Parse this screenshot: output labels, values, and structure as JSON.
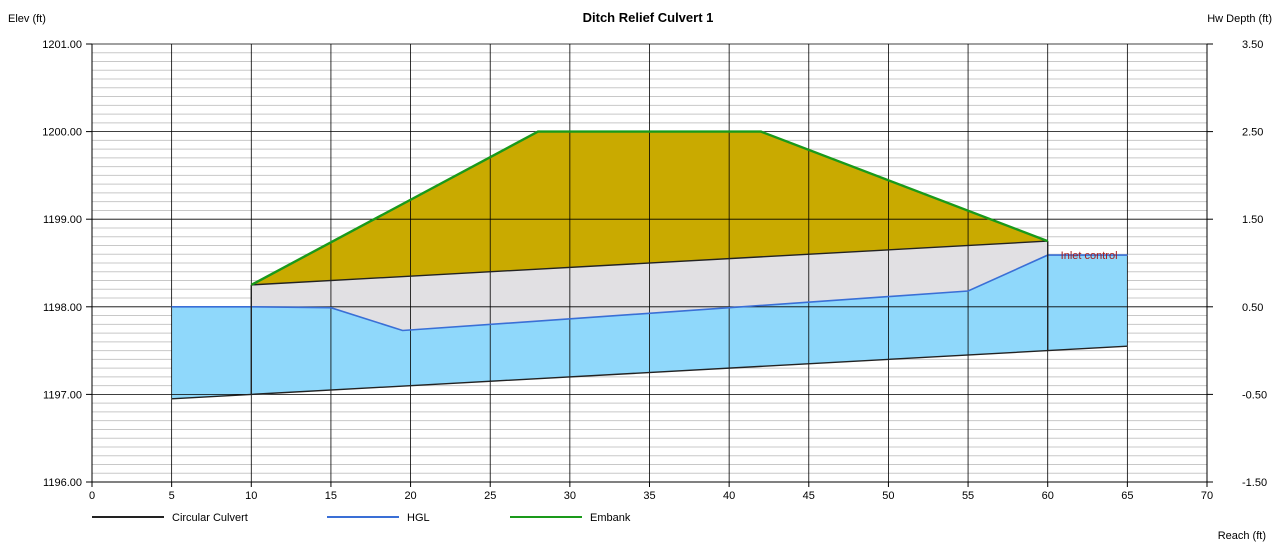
{
  "chart_data": {
    "type": "area",
    "title": "Ditch Relief Culvert 1",
    "y_left_label": "Elev (ft)",
    "y_right_label": "Hw Depth (ft)",
    "x_label": "Reach (ft)",
    "xlim": [
      0,
      70
    ],
    "ylim": [
      1196.0,
      1201.0
    ],
    "y2lim": [
      -1.5,
      3.5
    ],
    "x_ticks": [
      "0",
      "5",
      "10",
      "15",
      "20",
      "25",
      "30",
      "35",
      "40",
      "45",
      "50",
      "55",
      "60",
      "65",
      "70"
    ],
    "y_ticks": [
      "1196.00",
      "1197.00",
      "1198.00",
      "1199.00",
      "1200.00",
      "1201.00"
    ],
    "y2_ticks": [
      "-1.50",
      "-0.50",
      "0.50",
      "1.50",
      "2.50",
      "3.50"
    ],
    "grid": true,
    "legend_placement": "bottom-left",
    "series": [
      {
        "name": "Circular Culvert",
        "color": "#222222",
        "invert": [
          [
            5,
            1196.95
          ],
          [
            10,
            1197.0
          ],
          [
            60,
            1197.5
          ],
          [
            65,
            1197.55
          ]
        ],
        "crown": [
          [
            10,
            1198.25
          ],
          [
            60,
            1198.75
          ]
        ]
      },
      {
        "name": "HGL",
        "color": "#3a6fd6",
        "values": [
          [
            5,
            1198.0
          ],
          [
            10,
            1198.0
          ],
          [
            15,
            1197.99
          ],
          [
            19.5,
            1197.73
          ],
          [
            55,
            1198.18
          ],
          [
            60,
            1198.59
          ],
          [
            65,
            1198.59
          ]
        ]
      },
      {
        "name": "Embank",
        "color": "#1a9a1a",
        "values": [
          [
            10,
            1198.25
          ],
          [
            28,
            1200.0
          ],
          [
            42,
            1200.0
          ],
          [
            60,
            1198.75
          ]
        ]
      }
    ],
    "fills": {
      "water": "#8fd8fb",
      "embankment": "#c9aa00",
      "culvert_interior": "#e1e0e3"
    },
    "annotations": [
      {
        "text": "Inlet control",
        "x": 60.5,
        "y": 1198.59,
        "color": "#a51d1d"
      }
    ]
  }
}
